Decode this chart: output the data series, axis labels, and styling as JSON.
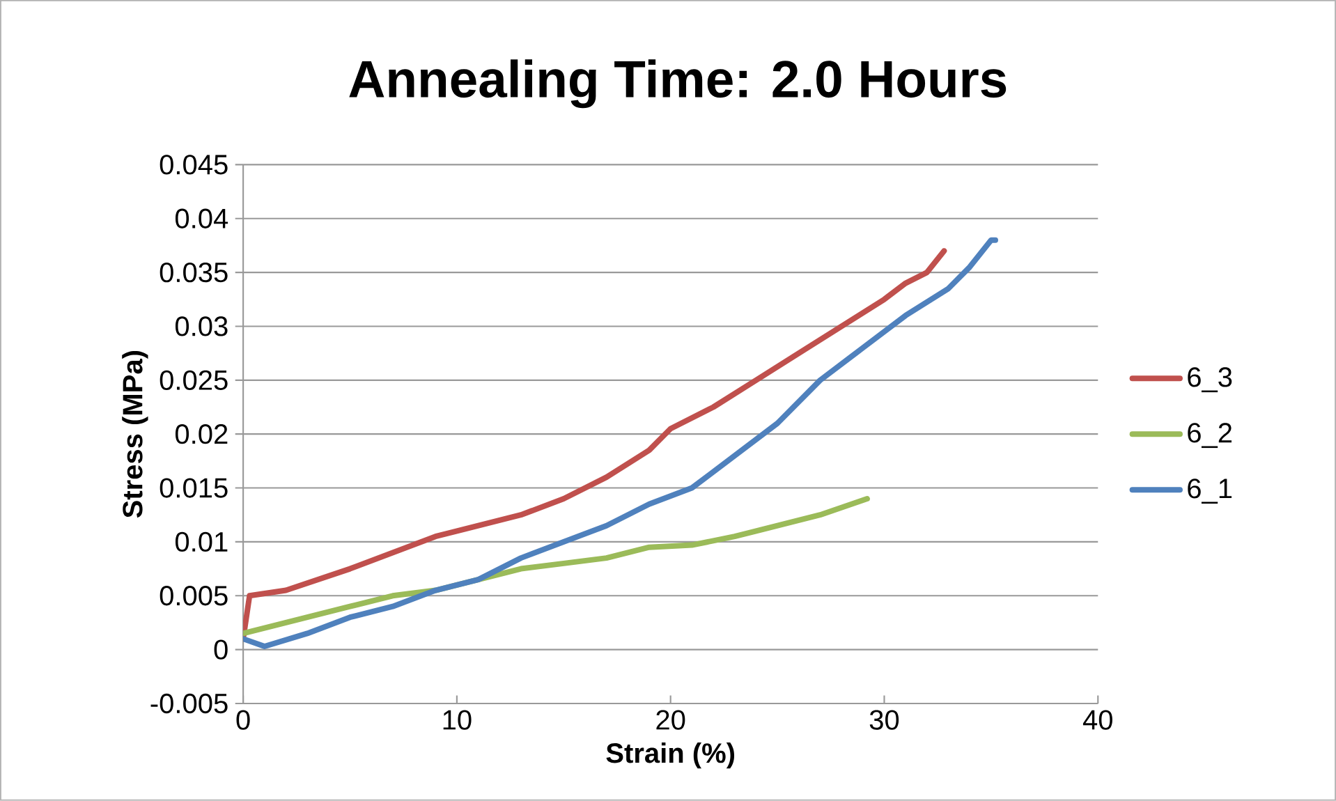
{
  "chart_data": {
    "type": "line",
    "title": "Annealing Time: 2.0 Hours",
    "xlabel": "Strain (%)",
    "ylabel": "Stress (MPa)",
    "xlim": [
      0,
      40
    ],
    "xticks": [
      0,
      10,
      20,
      30,
      40
    ],
    "ylim": [
      -0.005,
      0.045
    ],
    "yticks": [
      -0.005,
      0,
      0.005,
      0.01,
      0.015,
      0.02,
      0.025,
      0.03,
      0.035,
      0.04,
      0.045
    ],
    "grid": "y",
    "legend": "right",
    "marker": "none",
    "line_style": "solid",
    "series": [
      {
        "name": "6_3",
        "color": "#c0504d",
        "x": [
          0,
          0.3,
          2,
          5,
          7,
          9,
          11,
          13,
          15,
          17,
          19,
          20,
          22,
          24,
          26,
          28,
          30,
          31,
          32,
          32.8
        ],
        "values": [
          0.001,
          0.005,
          0.0055,
          0.0075,
          0.009,
          0.0105,
          0.0115,
          0.0125,
          0.014,
          0.016,
          0.0185,
          0.0205,
          0.0225,
          0.025,
          0.0275,
          0.03,
          0.0325,
          0.034,
          0.035,
          0.037
        ]
      },
      {
        "name": "6_2",
        "color": "#9bbb59",
        "x": [
          0,
          1,
          3,
          5,
          7,
          9,
          11,
          13,
          15,
          17,
          19,
          21,
          23,
          25,
          27,
          29.2
        ],
        "values": [
          0.0015,
          0.002,
          0.003,
          0.004,
          0.005,
          0.0055,
          0.0065,
          0.0075,
          0.008,
          0.0085,
          0.0095,
          0.0097,
          0.0105,
          0.0115,
          0.0125,
          0.014
        ]
      },
      {
        "name": "6_1",
        "color": "#4f81bd",
        "x": [
          0,
          1,
          3,
          5,
          7,
          9,
          11,
          13,
          15,
          17,
          19,
          21,
          23,
          25,
          27,
          29,
          31,
          33,
          34,
          35,
          35.2
        ],
        "values": [
          0.001,
          0.0003,
          0.0015,
          0.003,
          0.004,
          0.0055,
          0.0065,
          0.0085,
          0.01,
          0.0115,
          0.0135,
          0.015,
          0.018,
          0.021,
          0.025,
          0.028,
          0.031,
          0.0335,
          0.0355,
          0.038,
          0.038
        ]
      }
    ]
  }
}
